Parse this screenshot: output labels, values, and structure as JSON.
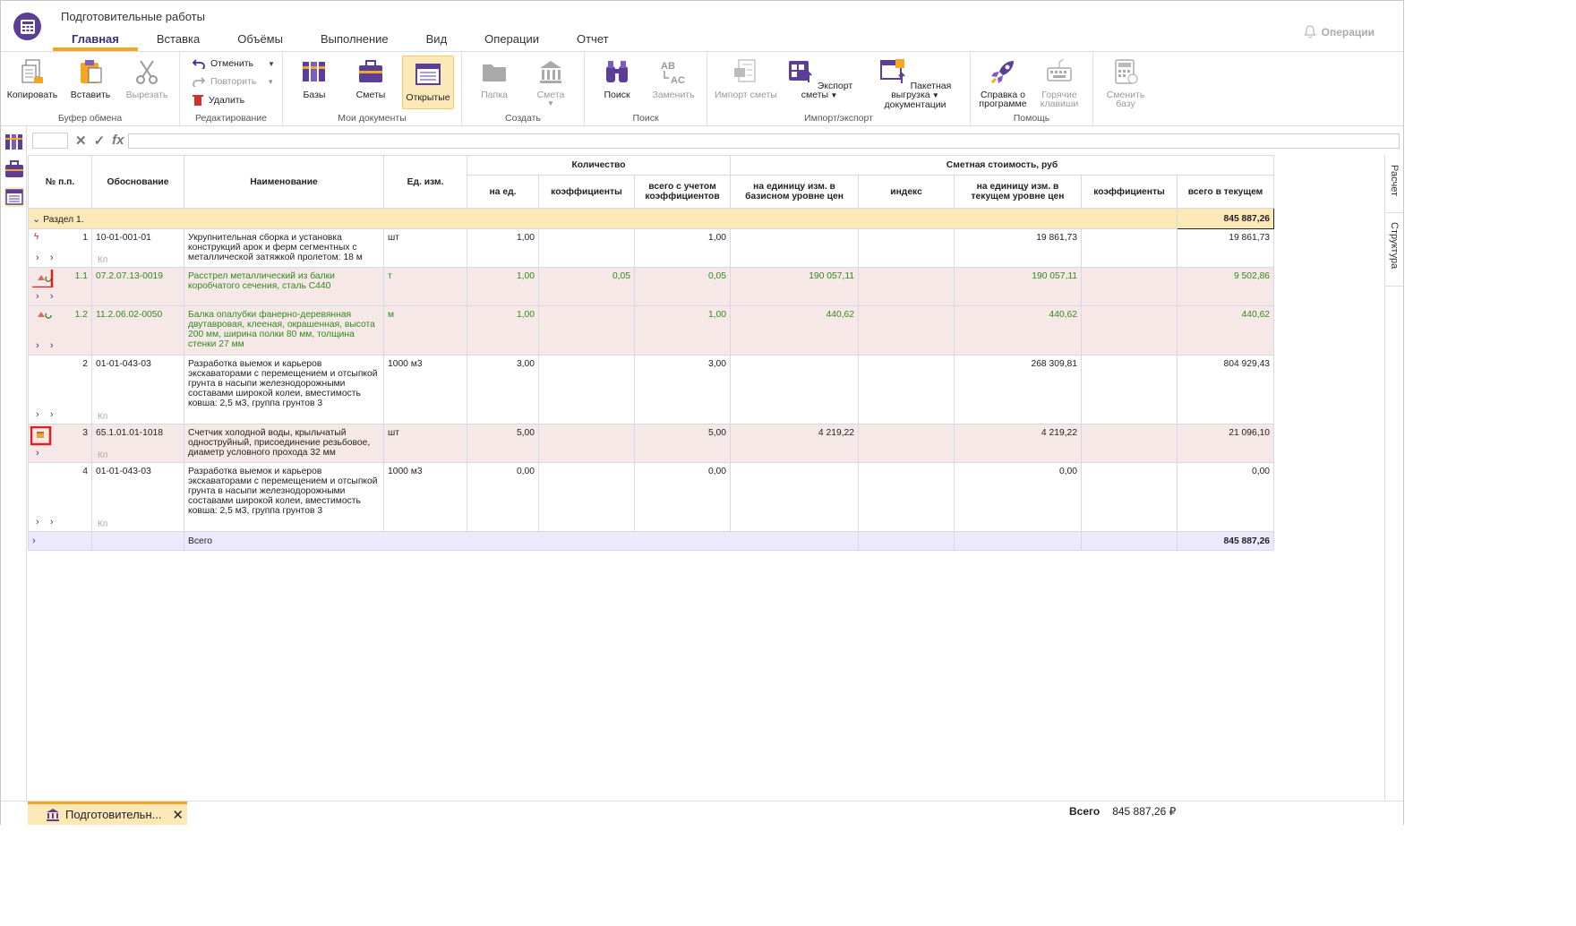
{
  "app": {
    "title": "Подготовительные работы",
    "operations": "Операции"
  },
  "tabs": [
    "Главная",
    "Вставка",
    "Объёмы",
    "Выполнение",
    "Вид",
    "Операции",
    "Отчет"
  ],
  "ribbon": {
    "clipboard": {
      "label": "Буфер обмена",
      "copy": "Копировать",
      "paste": "Вставить",
      "cut": "Вырезать"
    },
    "edit": {
      "label": "Редактирование",
      "undo": "Отменить",
      "redo": "Повторить",
      "delete": "Удалить"
    },
    "docs": {
      "label": "Мои документы",
      "bases": "Базы",
      "estimates": "Сметы",
      "open": "Открытые"
    },
    "create": {
      "label": "Создать",
      "folder": "Папка",
      "estimate": "Смета"
    },
    "search": {
      "label": "Поиск",
      "find": "Поиск",
      "replace": "Заменить"
    },
    "io": {
      "label": "Импорт/экспорт",
      "import": "Импорт сметы",
      "export": "Экспорт сметы",
      "batch1": "Пакетная выгрузка",
      "batch2": "документации"
    },
    "help": {
      "label": "Помощь",
      "about1": "Справка о",
      "about2": "программе",
      "hot1": "Горячие",
      "hot2": "клавиши"
    },
    "base": {
      "change1": "Сменить",
      "change2": "базу"
    }
  },
  "side": {
    "calc": "Расчет",
    "structure": "Структура"
  },
  "headers": {
    "num": "№ п.п.",
    "basis": "Обоснование",
    "name": "Наименование",
    "unit": "Ед. изм.",
    "qty": "Количество",
    "cost": "Сметная стоимость, руб",
    "per_unit": "на ед.",
    "coef": "коэффициенты",
    "qty_total": "всего с учетом коэффициентов",
    "base_unit": "на единицу изм. в базисном уровне цен",
    "index": "индекс",
    "cur_unit": "на единицу изм. в текущем уровне цен",
    "coef2": "коэффициенты",
    "total_cur": "всего в текущем"
  },
  "section": {
    "label": "Раздел 1.",
    "total": "845 887,26"
  },
  "rows": [
    {
      "n": "1",
      "basis": "10-01-001-01",
      "name": "Укрупнительная сборка и установка конструкций арок и ферм сегментных с металлической затяжкой пролетом: 18 м",
      "unit": "шт",
      "q": "1,00",
      "coef": "",
      "qt": "1,00",
      "bu": "",
      "idx": "",
      "cu": "19 861,73",
      "c2": "",
      "tot": "19 861,73"
    },
    {
      "n": "1.1",
      "basis": "07.2.07.13-0019",
      "name": "Расстрел металлический из балки коробчатого сечения, сталь С440",
      "unit": "т",
      "q": "1,00",
      "coef": "0,05",
      "qt": "0,05",
      "bu": "190 057,11",
      "idx": "",
      "cu": "190 057,11",
      "c2": "",
      "tot": "9 502,86"
    },
    {
      "n": "1.2",
      "basis": "11.2.06.02-0050",
      "name": "Балка опалубки фанерно-деревянная двутавровая, клееная, окрашенная, высота 200 мм, ширина полки 80 мм, толщина стенки 27 мм",
      "unit": "м",
      "q": "1,00",
      "coef": "",
      "qt": "1,00",
      "bu": "440,62",
      "idx": "",
      "cu": "440,62",
      "c2": "",
      "tot": "440,62"
    },
    {
      "n": "2",
      "basis": "01-01-043-03",
      "name": "Разработка выемок и карьеров экскаваторами с перемещением и отсыпкой грунта в насыпи железнодорожными составами широкой колеи, вместимость ковша: 2,5 м3, группа грунтов 3",
      "unit": "1000 м3",
      "q": "3,00",
      "coef": "",
      "qt": "3,00",
      "bu": "",
      "idx": "",
      "cu": "268 309,81",
      "c2": "",
      "tot": "804 929,43"
    },
    {
      "n": "3",
      "basis": "65.1.01.01-1018",
      "name": "Счетчик холодной воды, крыльчатый одноструйный, присоединение резьбовое, диаметр условного прохода 32 мм",
      "unit": "шт",
      "q": "5,00",
      "coef": "",
      "qt": "5,00",
      "bu": "4 219,22",
      "idx": "",
      "cu": "4 219,22",
      "c2": "",
      "tot": "21 096,10"
    },
    {
      "n": "4",
      "basis": "01-01-043-03",
      "name": "Разработка выемок и карьеров экскаваторами с перемещением и отсыпкой грунта в насыпи железнодорожными составами широкой колеи, вместимость ковша: 2,5 м3, группа грунтов 3",
      "unit": "1000 м3",
      "q": "0,00",
      "coef": "",
      "qt": "0,00",
      "bu": "",
      "idx": "",
      "cu": "0,00",
      "c2": "",
      "tot": "0,00"
    }
  ],
  "total_row": {
    "label": "Всего",
    "value": "845 887,26"
  },
  "kp": "Кп",
  "status": {
    "doc_tab": "Подготовительн...",
    "total_label": "Всего",
    "total_value": "845 887,26 ₽"
  }
}
